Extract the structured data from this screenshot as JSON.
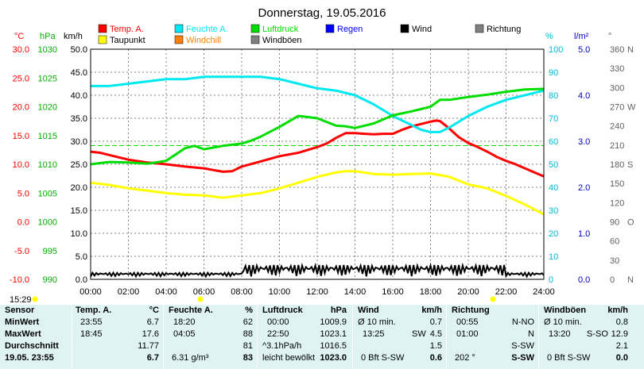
{
  "chart_data": {
    "type": "line",
    "title": "Donnerstag, 19.05.2016",
    "x_ticks": [
      "00:00",
      "02:00",
      "04:00",
      "06:00",
      "08:00",
      "10:00",
      "12:00",
      "14:00",
      "16:00",
      "18:00",
      "20:00",
      "22:00",
      "24:00"
    ],
    "axes": {
      "temp": {
        "unit": "°C",
        "ticks": [
          "30.0",
          "25.0",
          "20.0",
          "15.0",
          "10.0",
          "5.0",
          "0.0",
          "-5.0",
          "-10.0"
        ],
        "range": [
          -10,
          30
        ],
        "color": "#ff0000"
      },
      "hpa": {
        "unit": "hPa",
        "ticks": [
          "1030",
          "1025",
          "1020",
          "1015",
          "1010",
          "1005",
          "1000",
          "995",
          "990"
        ],
        "range": [
          990,
          1030
        ],
        "color": "#00b000"
      },
      "kmh": {
        "unit": "km/h",
        "ticks": [
          "50.0",
          "45.0",
          "40.0",
          "35.0",
          "30.0",
          "25.0",
          "20.0",
          "15.0",
          "10.0",
          "5.0",
          "0.0"
        ],
        "range": [
          0,
          50
        ],
        "color": "#000000"
      },
      "pct": {
        "unit": "%",
        "ticks": [
          "100",
          "90",
          "80",
          "70",
          "60",
          "50",
          "40",
          "30",
          "20",
          "10",
          "0"
        ],
        "range": [
          0,
          100
        ],
        "color": "#00b8d8"
      },
      "rain": {
        "unit": "l/m²",
        "ticks": [
          "5.0",
          "4.0",
          "3.0",
          "2.0",
          "1.0",
          "0.0"
        ],
        "range": [
          0,
          5
        ],
        "color": "#0000cc"
      },
      "dir": {
        "unit": "°",
        "ticks": [
          "360",
          "330",
          "300",
          "270",
          "240",
          "210",
          "180",
          "150",
          "120",
          "90",
          "60",
          "30",
          "0"
        ],
        "range": [
          0,
          360
        ],
        "color": "#606060"
      },
      "dir_labels": [
        "N",
        "W",
        "S",
        "O",
        "N"
      ]
    },
    "legend": [
      {
        "name": "Temp. A.",
        "color": "#ff0000"
      },
      {
        "name": "Feuchte A.",
        "color": "#00e8f0"
      },
      {
        "name": "Luftdruck",
        "color": "#00dd00"
      },
      {
        "name": "Regen",
        "color": "#0000ff"
      },
      {
        "name": "Wind",
        "color": "#000000"
      },
      {
        "name": "Richtung",
        "color": "#808080"
      },
      {
        "name": "Taupunkt",
        "color": "#ffff00"
      },
      {
        "name": "Windchill",
        "color": "#ff8000"
      },
      {
        "name": "Windböen",
        "color": "#808080"
      }
    ],
    "series": [
      {
        "name": "Temp. A.",
        "axis": "temp",
        "color": "#ff0000",
        "x": [
          0,
          0.5,
          1,
          1.5,
          2,
          3,
          4,
          5,
          6,
          6.5,
          7,
          7.5,
          8,
          9,
          10,
          11,
          12,
          12.5,
          13,
          13.5,
          14,
          14.5,
          15,
          15.5,
          16,
          16.5,
          17,
          17.5,
          18,
          18.3,
          18.5,
          19,
          19.5,
          20,
          20.5,
          21,
          21.5,
          22,
          22.5,
          23,
          23.5,
          24
        ],
        "y": [
          12.2,
          12.0,
          11.6,
          11.2,
          10.8,
          10.3,
          10.0,
          9.6,
          9.3,
          9.0,
          8.7,
          8.8,
          9.6,
          10.5,
          11.4,
          12.0,
          13.0,
          13.6,
          14.6,
          15.4,
          15.4,
          15.3,
          15.2,
          15.3,
          15.3,
          16.0,
          16.6,
          17.0,
          17.4,
          17.6,
          17.5,
          16.2,
          14.7,
          13.7,
          13.0,
          12.2,
          11.3,
          10.6,
          10.0,
          9.3,
          8.6,
          7.9
        ]
      },
      {
        "name": "Taupunkt",
        "axis": "temp",
        "color": "#ffff00",
        "x": [
          0,
          1,
          2,
          3,
          4,
          5,
          6,
          7,
          8,
          9,
          10,
          11,
          12,
          13,
          13.5,
          14,
          15,
          16,
          17,
          18,
          19,
          20,
          21,
          22,
          23,
          24
        ],
        "y": [
          6.8,
          6.4,
          5.8,
          5.4,
          5.0,
          4.7,
          4.6,
          4.2,
          4.6,
          5.0,
          5.8,
          6.8,
          7.8,
          8.6,
          8.8,
          8.8,
          8.3,
          8.2,
          8.3,
          8.4,
          7.8,
          6.5,
          5.8,
          4.5,
          3.0,
          1.3
        ]
      },
      {
        "name": "Feuchte A.",
        "axis": "pct",
        "color": "#00e8f0",
        "x": [
          0,
          1,
          2,
          3,
          4,
          5,
          6,
          7,
          8,
          9,
          10,
          10.5,
          11,
          11.5,
          12,
          13,
          14,
          15,
          16,
          17,
          17.5,
          18,
          18.5,
          19,
          20,
          21,
          22,
          23,
          23.5,
          24
        ],
        "y": [
          84,
          84,
          85,
          86,
          87,
          87,
          88,
          88,
          88,
          88,
          87,
          86,
          85,
          84,
          83,
          82,
          80,
          76,
          71,
          67,
          65,
          64,
          64,
          66,
          71,
          75,
          78,
          80,
          81,
          82
        ]
      },
      {
        "name": "Luftdruck",
        "axis": "hpa",
        "color": "#00dd00",
        "x": [
          0,
          1,
          2,
          3,
          4,
          5,
          5.5,
          6,
          7,
          8,
          8.5,
          9,
          10,
          11,
          11.5,
          12,
          13,
          13.5,
          14,
          15,
          16,
          17,
          18,
          18.5,
          19,
          20,
          21,
          22,
          23,
          24
        ],
        "y": [
          1010,
          1010.4,
          1010.3,
          1010.1,
          1010.6,
          1012.8,
          1013.2,
          1012.6,
          1013.2,
          1013.6,
          1014.1,
          1014.8,
          1016.5,
          1018.4,
          1018.2,
          1018.0,
          1016.7,
          1016.6,
          1016.3,
          1017.1,
          1018.5,
          1019.2,
          1020.0,
          1021.2,
          1021.2,
          1021.7,
          1022.1,
          1022.6,
          1023.0,
          1023.1
        ]
      }
    ],
    "reference_lines": [
      {
        "axis": "hpa",
        "value": 1013.25,
        "color": "#00dd00",
        "style": "dashed"
      }
    ]
  },
  "header": {
    "time": "15:29"
  },
  "stats": {
    "row_labels": [
      "Sensor",
      "MinWert",
      "MaxWert",
      "Durchschnitt",
      "19.05. 23:55"
    ],
    "temp": {
      "title": "Temp. A.",
      "unit": "°C",
      "min_time": "23:55",
      "min": "6.7",
      "max_time": "18:45",
      "max": "17.6",
      "avg": "11.77",
      "cur": "6.7"
    },
    "hum": {
      "title": "Feuchte A.",
      "unit": "%",
      "min_time": "18:20",
      "min": "62",
      "max_time": "04:05",
      "max": "88",
      "avg": "81",
      "cur_extra": "6.31 g/m³",
      "cur": "83"
    },
    "press": {
      "title": "Luftdruck",
      "unit": "hPa",
      "min_time": "00:00",
      "min": "1009.9",
      "max_time": "22:50",
      "max": "1023.1",
      "trend": "^3.1hPa/h",
      "avg": "1016.5",
      "cur_extra": "leicht bewölkt",
      "cur": "1023.0"
    },
    "wind": {
      "title": "Wind",
      "unit": "km/h",
      "min_time": "Ø 10 min.",
      "min": "0.7",
      "max_time": "13:25",
      "max_dir": "SW",
      "max": "4.5",
      "avg": "1.5",
      "cur_extra": "0 Bft S-SW",
      "cur": "0.6"
    },
    "dir": {
      "title": "Richtung",
      "min_time": "00:55",
      "min": "N-NO",
      "max_time": "01:00",
      "max": "N",
      "avg": "S-SW",
      "cur_extra": "202 °",
      "cur": "S-SW"
    },
    "gust": {
      "title": "Windböen",
      "unit": "km/h",
      "min_time": "Ø 10 min.",
      "min": "0.8",
      "max_time": "13:20",
      "max_dir": "S-SO",
      "max": "12.9",
      "avg": "2.1",
      "cur_extra": "0 Bft S-SW",
      "cur": "0.0"
    }
  }
}
